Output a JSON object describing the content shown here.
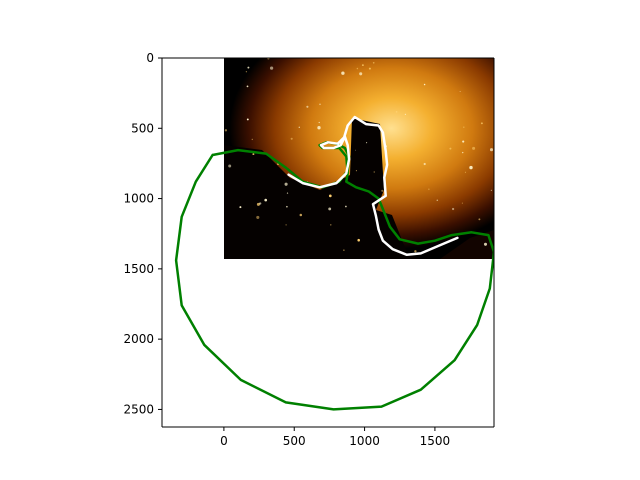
{
  "chart_data": {
    "type": "image-overlay",
    "title": "",
    "xlabel": "",
    "ylabel": "",
    "xlim": [
      -440,
      1920
    ],
    "ylim": [
      2625,
      0
    ],
    "y_inverted": true,
    "grid": false,
    "x_ticks": [
      0,
      500,
      1000,
      1500
    ],
    "x_tick_labels": [
      "0",
      "500",
      "1000",
      "1500"
    ],
    "y_ticks": [
      0,
      500,
      1000,
      1500,
      2000,
      2500
    ],
    "y_tick_labels": [
      "0",
      "500",
      "1000",
      "1500",
      "2000",
      "2500"
    ],
    "image": {
      "description_tags": [
        "nebula",
        "starfield"
      ],
      "extent": [
        0,
        1920,
        1440,
        0
      ],
      "colormap": [
        "#000000",
        "#3a0f00",
        "#8a3a00",
        "#d07a10",
        "#f4b030",
        "#ffe090"
      ]
    },
    "series": [
      {
        "color": "#008000",
        "style": "solid",
        "points": [
          [
            -80,
            690
          ],
          [
            100,
            655
          ],
          [
            300,
            680
          ],
          [
            440,
            780
          ],
          [
            560,
            880
          ],
          [
            700,
            920
          ],
          [
            820,
            880
          ],
          [
            880,
            800
          ],
          [
            890,
            700
          ],
          [
            860,
            640
          ],
          [
            800,
            610
          ],
          [
            730,
            600
          ],
          [
            680,
            620
          ],
          [
            700,
            640
          ],
          [
            760,
            640
          ],
          [
            820,
            640
          ],
          [
            870,
            700
          ],
          [
            880,
            820
          ],
          [
            870,
            880
          ],
          [
            940,
            920
          ],
          [
            1030,
            950
          ],
          [
            1100,
            1000
          ],
          [
            1140,
            1100
          ],
          [
            1180,
            1200
          ],
          [
            1250,
            1290
          ],
          [
            1380,
            1320
          ],
          [
            1500,
            1300
          ],
          [
            1620,
            1260
          ],
          [
            1760,
            1240
          ],
          [
            1880,
            1260
          ],
          [
            1920,
            1380
          ],
          [
            1890,
            1640
          ],
          [
            1800,
            1900
          ],
          [
            1640,
            2150
          ],
          [
            1400,
            2360
          ],
          [
            1120,
            2480
          ],
          [
            780,
            2500
          ],
          [
            440,
            2450
          ],
          [
            120,
            2290
          ],
          [
            -140,
            2040
          ],
          [
            -300,
            1760
          ],
          [
            -340,
            1440
          ],
          [
            -300,
            1130
          ],
          [
            -200,
            880
          ],
          [
            -80,
            690
          ]
        ]
      },
      {
        "color": "#ffffff",
        "style": "solid",
        "points": [
          [
            460,
            830
          ],
          [
            560,
            890
          ],
          [
            680,
            920
          ],
          [
            800,
            890
          ],
          [
            870,
            820
          ],
          [
            890,
            720
          ],
          [
            880,
            620
          ],
          [
            860,
            560
          ],
          [
            810,
            610
          ],
          [
            740,
            600
          ],
          [
            690,
            620
          ],
          [
            710,
            640
          ],
          [
            780,
            640
          ],
          [
            830,
            620
          ],
          [
            850,
            580
          ],
          [
            880,
            480
          ],
          [
            930,
            420
          ],
          [
            1010,
            470
          ],
          [
            1100,
            480
          ],
          [
            1130,
            530
          ],
          [
            1150,
            660
          ],
          [
            1160,
            760
          ],
          [
            1140,
            850
          ],
          [
            1150,
            980
          ],
          [
            1060,
            1040
          ],
          [
            1080,
            1120
          ],
          [
            1100,
            1220
          ],
          [
            1130,
            1300
          ],
          [
            1200,
            1360
          ],
          [
            1300,
            1400
          ],
          [
            1400,
            1390
          ],
          [
            1540,
            1330
          ],
          [
            1660,
            1280
          ]
        ]
      }
    ]
  }
}
